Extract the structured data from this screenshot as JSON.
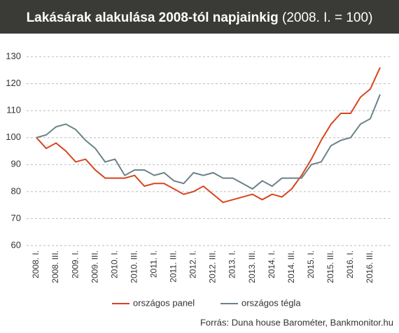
{
  "chart_data": {
    "type": "line",
    "title": "Lakásárak alakulása 2008-tól napjainkig",
    "subtitle": "(2008. I. = 100)",
    "categories": [
      "2008. I.",
      null,
      "2008. III.",
      null,
      "2009. I.",
      null,
      "2009. III.",
      null,
      "2010. I.",
      null,
      "2010. III.",
      null,
      "2011. I.",
      null,
      "2011. III.",
      null,
      "2012. I.",
      null,
      "2012. III.",
      null,
      "2013. I.",
      null,
      "2013. III.",
      null,
      "2014. I.",
      null,
      "2014. III.",
      null,
      "2015. I.",
      null,
      "2015. III.",
      null,
      "2016. I.",
      null,
      "2016. III.",
      null
    ],
    "series": [
      {
        "name": "országos panel",
        "color": "#d6451f",
        "values": [
          100,
          96,
          98,
          95,
          91,
          92,
          88,
          85,
          85,
          85,
          86,
          82,
          83,
          83,
          81,
          79,
          80,
          82,
          79,
          76,
          77,
          78,
          79,
          77,
          79,
          78,
          81,
          86,
          92,
          99,
          105,
          109,
          109,
          115,
          118,
          126
        ]
      },
      {
        "name": "országos tégla",
        "color": "#6a8288",
        "values": [
          100,
          101,
          104,
          105,
          103,
          99,
          96,
          91,
          92,
          86,
          88,
          88,
          86,
          87,
          84,
          83,
          87,
          86,
          87,
          85,
          85,
          83,
          81,
          84,
          82,
          85,
          85,
          85,
          90,
          91,
          97,
          99,
          100,
          105,
          107,
          116
        ]
      }
    ],
    "ylim": [
      60,
      130
    ],
    "yticks": [
      60,
      70,
      80,
      90,
      100,
      110,
      120,
      130
    ],
    "grid": true,
    "source": "Forrás: Duna house Barométer, Bankmonitor.hu"
  }
}
